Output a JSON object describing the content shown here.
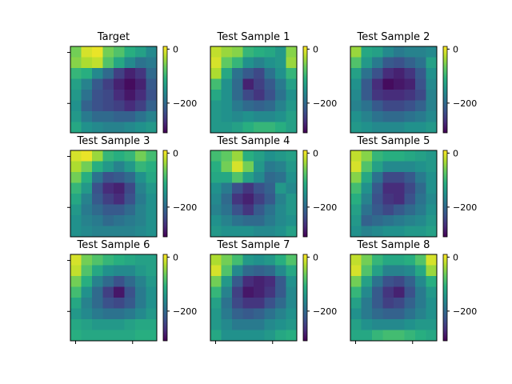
{
  "chart_data": {
    "type": "heatmap",
    "colormap": "viridis",
    "colorbar": {
      "range": [
        -310,
        10
      ],
      "ticks": [
        0,
        -200
      ],
      "tick_labels": [
        "0",
        "−200"
      ]
    },
    "panels": [
      {
        "title": "Target",
        "z": [
          [
            -60,
            -10,
            0,
            -60,
            -80,
            -110,
            -130,
            -160
          ],
          [
            -50,
            -30,
            -20,
            -80,
            -120,
            -160,
            -190,
            -180
          ],
          [
            -100,
            -110,
            -160,
            -200,
            -250,
            -280,
            -260,
            -200
          ],
          [
            -130,
            -170,
            -220,
            -250,
            -280,
            -300,
            -280,
            -220
          ],
          [
            -140,
            -190,
            -230,
            -240,
            -270,
            -290,
            -270,
            -230
          ],
          [
            -150,
            -210,
            -230,
            -240,
            -250,
            -270,
            -250,
            -210
          ],
          [
            -140,
            -180,
            -200,
            -200,
            -210,
            -210,
            -190,
            -170
          ],
          [
            -120,
            -150,
            -160,
            -170,
            -170,
            -160,
            -150,
            -140
          ]
        ]
      },
      {
        "title": "Test Sample 1",
        "z": [
          [
            -20,
            -40,
            -50,
            -100,
            -110,
            -120,
            -140,
            -50
          ],
          [
            -10,
            -70,
            -100,
            -150,
            -170,
            -150,
            -140,
            -40
          ],
          [
            -30,
            -120,
            -190,
            -220,
            -240,
            -190,
            -150,
            -100
          ],
          [
            -90,
            -150,
            -200,
            -280,
            -250,
            -220,
            -180,
            -130
          ],
          [
            -120,
            -150,
            -200,
            -240,
            -260,
            -230,
            -190,
            -150
          ],
          [
            -140,
            -150,
            -180,
            -200,
            -210,
            -200,
            -170,
            -140
          ],
          [
            -140,
            -150,
            -160,
            -150,
            -160,
            -160,
            -150,
            -130
          ],
          [
            -140,
            -140,
            -130,
            -110,
            -100,
            -100,
            -110,
            -130
          ]
        ]
      },
      {
        "title": "Test Sample 2",
        "z": [
          [
            -40,
            -120,
            -130,
            -160,
            -180,
            -170,
            -170,
            -160
          ],
          [
            -80,
            -140,
            -180,
            -220,
            -230,
            -210,
            -190,
            -130
          ],
          [
            -130,
            -190,
            -230,
            -270,
            -280,
            -260,
            -220,
            -150
          ],
          [
            -150,
            -220,
            -270,
            -300,
            -290,
            -280,
            -230,
            -160
          ],
          [
            -160,
            -220,
            -260,
            -270,
            -270,
            -260,
            -240,
            -170
          ],
          [
            -170,
            -190,
            -220,
            -240,
            -240,
            -230,
            -210,
            -170
          ],
          [
            -150,
            -170,
            -190,
            -200,
            -200,
            -190,
            -180,
            -160
          ],
          [
            -140,
            -150,
            -160,
            -160,
            -160,
            -150,
            -150,
            -140
          ]
        ]
      },
      {
        "title": "Test Sample 3",
        "z": [
          [
            -10,
            0,
            -40,
            -100,
            -110,
            -100,
            -60,
            -90
          ],
          [
            -30,
            -60,
            -110,
            -140,
            -170,
            -140,
            -100,
            -110
          ],
          [
            -60,
            -110,
            -190,
            -230,
            -220,
            -200,
            -150,
            -120
          ],
          [
            -100,
            -140,
            -230,
            -270,
            -280,
            -240,
            -170,
            -140
          ],
          [
            -120,
            -170,
            -220,
            -250,
            -270,
            -230,
            -180,
            -150
          ],
          [
            -140,
            -180,
            -200,
            -220,
            -220,
            -200,
            -170,
            -150
          ],
          [
            -150,
            -170,
            -180,
            -200,
            -190,
            -180,
            -170,
            -150
          ],
          [
            -150,
            -160,
            -170,
            -170,
            -170,
            -170,
            -160,
            -150
          ]
        ]
      },
      {
        "title": "Test Sample 4",
        "z": [
          [
            -90,
            -70,
            -40,
            -110,
            -130,
            -150,
            -140,
            -130
          ],
          [
            -110,
            -60,
            -10,
            -60,
            -140,
            -180,
            -170,
            -140
          ],
          [
            -120,
            -120,
            -80,
            -130,
            -160,
            -200,
            -190,
            -150
          ],
          [
            -150,
            -180,
            -230,
            -260,
            -230,
            -210,
            -140,
            -160
          ],
          [
            -160,
            -200,
            -260,
            -280,
            -250,
            -220,
            -170,
            -140
          ],
          [
            -170,
            -190,
            -230,
            -260,
            -220,
            -190,
            -160,
            -140
          ],
          [
            -150,
            -170,
            -190,
            -200,
            -200,
            -180,
            -160,
            -150
          ],
          [
            -140,
            -150,
            -150,
            -150,
            -160,
            -160,
            -150,
            -130
          ]
        ]
      },
      {
        "title": "Test Sample 5",
        "z": [
          [
            -20,
            -50,
            -100,
            -110,
            -110,
            -120,
            -130,
            -140
          ],
          [
            -10,
            -80,
            -130,
            -160,
            -160,
            -160,
            -150,
            -140
          ],
          [
            -50,
            -120,
            -190,
            -240,
            -240,
            -220,
            -180,
            -150
          ],
          [
            -90,
            -150,
            -220,
            -270,
            -270,
            -240,
            -200,
            -150
          ],
          [
            -110,
            -170,
            -230,
            -260,
            -270,
            -230,
            -190,
            -160
          ],
          [
            -130,
            -190,
            -220,
            -240,
            -220,
            -200,
            -180,
            -150
          ],
          [
            -140,
            -210,
            -200,
            -190,
            -180,
            -170,
            -160,
            -140
          ],
          [
            -150,
            -170,
            -160,
            -150,
            -150,
            -140,
            -140,
            -130
          ]
        ]
      },
      {
        "title": "Test Sample 6",
        "z": [
          [
            -10,
            -60,
            -80,
            -100,
            -110,
            -120,
            -130,
            -130
          ],
          [
            -20,
            -80,
            -120,
            -150,
            -160,
            -160,
            -140,
            -130
          ],
          [
            -60,
            -110,
            -170,
            -200,
            -230,
            -200,
            -170,
            -140
          ],
          [
            -90,
            -150,
            -200,
            -250,
            -290,
            -230,
            -180,
            -150
          ],
          [
            -120,
            -170,
            -200,
            -230,
            -240,
            -220,
            -180,
            -150
          ],
          [
            -140,
            -160,
            -180,
            -190,
            -190,
            -180,
            -160,
            -140
          ],
          [
            -120,
            -130,
            -140,
            -140,
            -140,
            -130,
            -120,
            -120
          ],
          [
            -110,
            -120,
            -120,
            -120,
            -120,
            -120,
            -110,
            -110
          ]
        ]
      },
      {
        "title": "Test Sample 7",
        "z": [
          [
            -30,
            -60,
            -90,
            -140,
            -150,
            -140,
            -110,
            -80
          ],
          [
            -10,
            -80,
            -160,
            -200,
            -210,
            -200,
            -160,
            -120
          ],
          [
            -60,
            -140,
            -220,
            -270,
            -280,
            -270,
            -220,
            -150
          ],
          [
            -100,
            -170,
            -250,
            -290,
            -280,
            -260,
            -220,
            -160
          ],
          [
            -130,
            -190,
            -240,
            -260,
            -260,
            -230,
            -200,
            -160
          ],
          [
            -140,
            -180,
            -210,
            -220,
            -210,
            -190,
            -170,
            -150
          ],
          [
            -140,
            -160,
            -180,
            -180,
            -180,
            -160,
            -150,
            -140
          ],
          [
            -120,
            -150,
            -150,
            -150,
            -150,
            -140,
            -120,
            -110
          ]
        ]
      },
      {
        "title": "Test Sample 8",
        "z": [
          [
            -20,
            -60,
            -100,
            -120,
            -120,
            -110,
            -80,
            -10
          ],
          [
            -10,
            -80,
            -130,
            -170,
            -170,
            -160,
            -120,
            -40
          ],
          [
            -60,
            -130,
            -190,
            -230,
            -240,
            -210,
            -160,
            -110
          ],
          [
            -100,
            -160,
            -220,
            -260,
            -280,
            -230,
            -180,
            -140
          ],
          [
            -130,
            -180,
            -220,
            -250,
            -240,
            -210,
            -180,
            -150
          ],
          [
            -150,
            -180,
            -200,
            -210,
            -210,
            -190,
            -170,
            -150
          ],
          [
            -130,
            -150,
            -160,
            -160,
            -160,
            -150,
            -140,
            -140
          ],
          [
            -120,
            -120,
            -100,
            -90,
            -90,
            -100,
            -110,
            -120
          ]
        ]
      }
    ]
  }
}
